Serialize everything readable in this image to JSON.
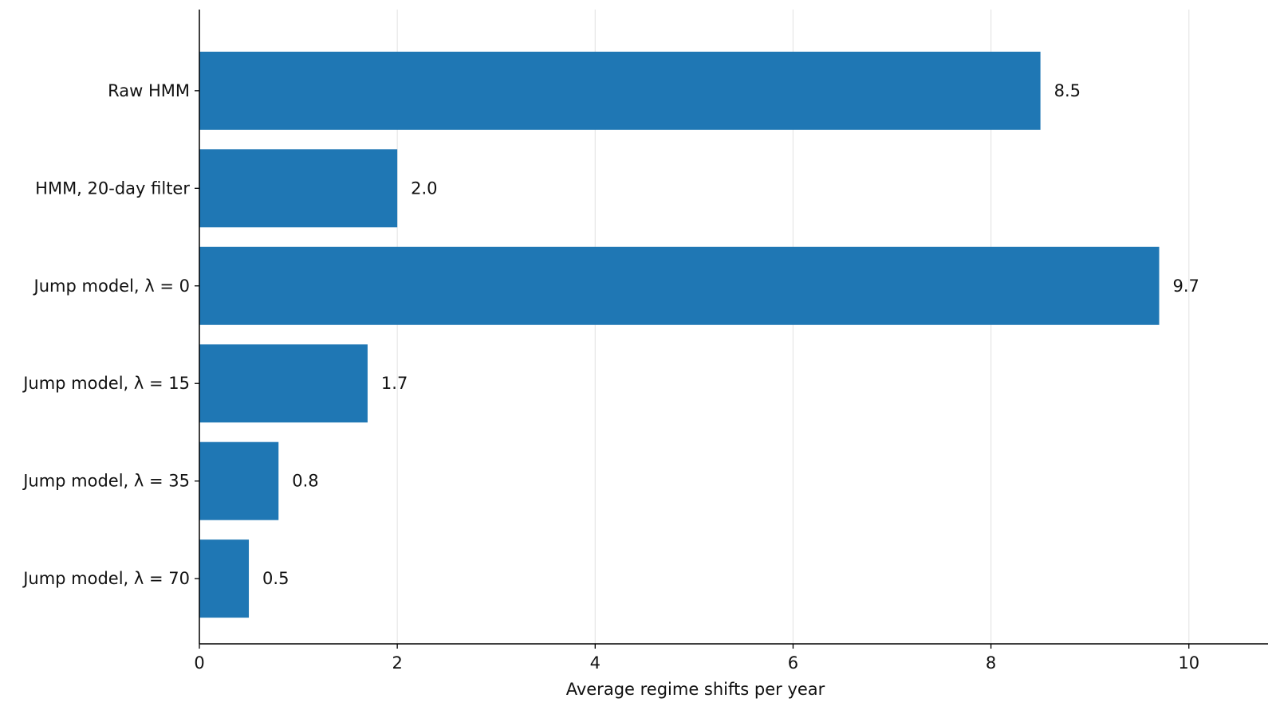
{
  "chart_data": {
    "type": "bar",
    "orientation": "horizontal",
    "categories": [
      "Raw HMM",
      "HMM, 20-day filter",
      "Jump model, λ = 0",
      "Jump model, λ = 15",
      "Jump model, λ = 35",
      "Jump model, λ = 70"
    ],
    "values": [
      8.5,
      2.0,
      9.7,
      1.7,
      0.8,
      0.5
    ],
    "value_labels": [
      "8.5",
      "2.0",
      "9.7",
      "1.7",
      "0.8",
      "0.5"
    ],
    "title": "",
    "xlabel": "Average regime shifts per year",
    "ylabel": "",
    "xlim": [
      0,
      10.8
    ],
    "xticks": [
      0,
      2,
      4,
      6,
      8,
      10
    ],
    "xtick_labels": [
      "0",
      "2",
      "4",
      "6",
      "8",
      "10"
    ],
    "grid": "x",
    "legend": "none",
    "colors": {
      "bar": "#1f77b4",
      "grid": "#e6e6e6",
      "axis": "#000000",
      "text": "#111111"
    }
  }
}
